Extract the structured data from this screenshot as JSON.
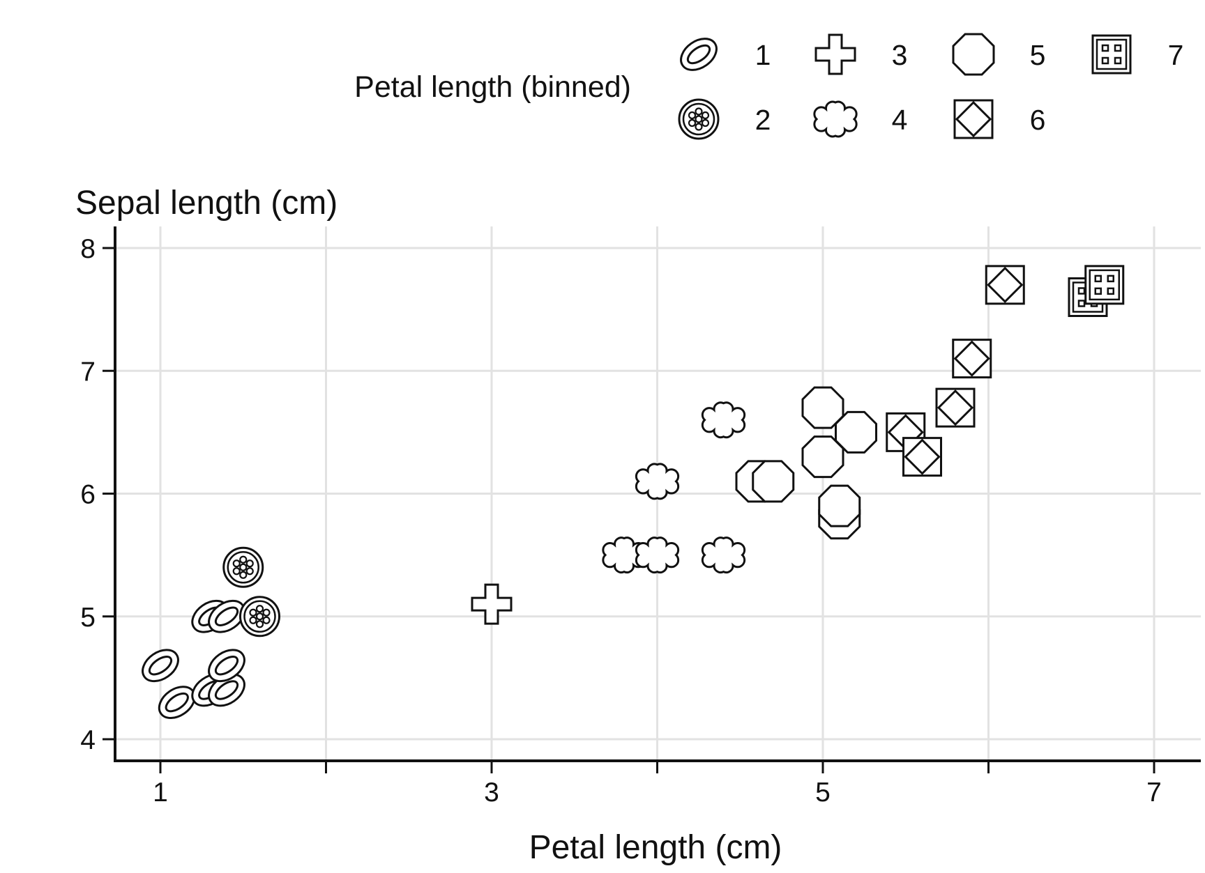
{
  "chart_data": {
    "type": "scatter",
    "xlabel": "Petal length (cm)",
    "ylabel": "Sepal length (cm)",
    "xlim": [
      0.7,
      7.3
    ],
    "ylim": [
      3.83,
      8.18
    ],
    "xticks": [
      1,
      2,
      3,
      4,
      5,
      6,
      7
    ],
    "xtick_labels": [
      "1",
      "",
      "3",
      "",
      "5",
      "",
      "7"
    ],
    "yticks": [
      4,
      5,
      6,
      7,
      8
    ],
    "ytick_labels": [
      "4",
      "5",
      "6",
      "7",
      "8"
    ],
    "grid": true,
    "legend": {
      "title": "Petal length (binned)",
      "placement": "top",
      "entries": [
        {
          "label": "1",
          "marker": "ellipse"
        },
        {
          "label": "2",
          "marker": "dotted-circle"
        },
        {
          "label": "3",
          "marker": "cross"
        },
        {
          "label": "4",
          "marker": "flower"
        },
        {
          "label": "5",
          "marker": "octagon"
        },
        {
          "label": "6",
          "marker": "diamond-square"
        },
        {
          "label": "7",
          "marker": "grid-square"
        }
      ]
    },
    "series": [
      {
        "name": "1",
        "marker": "ellipse",
        "points": [
          {
            "x": 1.0,
            "y": 4.6
          },
          {
            "x": 1.1,
            "y": 4.3
          },
          {
            "x": 1.3,
            "y": 4.4
          },
          {
            "x": 1.4,
            "y": 4.4
          },
          {
            "x": 1.4,
            "y": 4.6
          },
          {
            "x": 1.3,
            "y": 5.0
          },
          {
            "x": 1.4,
            "y": 5.0
          }
        ]
      },
      {
        "name": "2",
        "marker": "dotted-circle",
        "points": [
          {
            "x": 1.5,
            "y": 5.4
          },
          {
            "x": 1.6,
            "y": 5.0
          }
        ]
      },
      {
        "name": "3",
        "marker": "cross",
        "points": [
          {
            "x": 3.0,
            "y": 5.1
          }
        ]
      },
      {
        "name": "4",
        "marker": "flower",
        "points": [
          {
            "x": 3.8,
            "y": 5.5
          },
          {
            "x": 4.0,
            "y": 5.5
          },
          {
            "x": 4.4,
            "y": 5.5
          },
          {
            "x": 4.0,
            "y": 6.1
          },
          {
            "x": 4.4,
            "y": 6.6
          }
        ]
      },
      {
        "name": "5",
        "marker": "octagon",
        "points": [
          {
            "x": 4.6,
            "y": 6.1
          },
          {
            "x": 4.7,
            "y": 6.1
          },
          {
            "x": 5.0,
            "y": 6.3
          },
          {
            "x": 5.0,
            "y": 6.7
          },
          {
            "x": 5.1,
            "y": 5.8
          },
          {
            "x": 5.1,
            "y": 5.9
          },
          {
            "x": 5.2,
            "y": 6.5
          }
        ]
      },
      {
        "name": "6",
        "marker": "diamond-square",
        "points": [
          {
            "x": 5.5,
            "y": 6.5
          },
          {
            "x": 5.6,
            "y": 6.3
          },
          {
            "x": 5.8,
            "y": 6.7
          },
          {
            "x": 5.9,
            "y": 7.1
          },
          {
            "x": 6.1,
            "y": 7.7
          }
        ]
      },
      {
        "name": "7",
        "marker": "grid-square",
        "points": [
          {
            "x": 6.6,
            "y": 7.6
          },
          {
            "x": 6.7,
            "y": 7.7
          }
        ]
      }
    ]
  }
}
